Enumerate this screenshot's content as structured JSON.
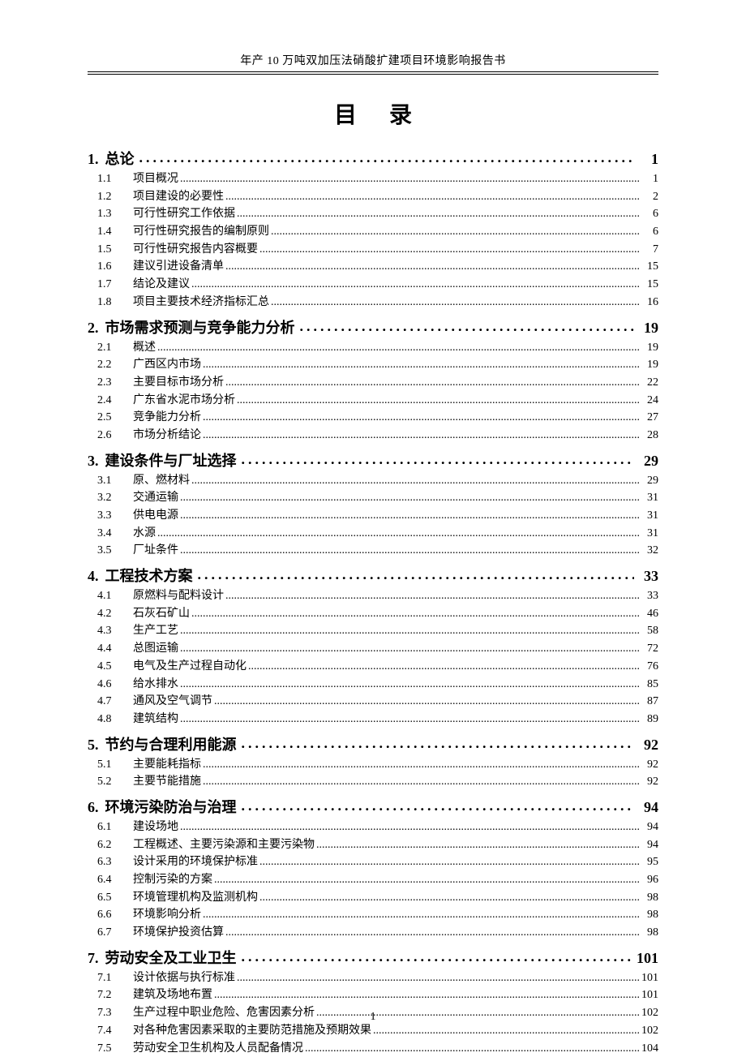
{
  "header": "年产 10 万吨双加压法硝酸扩建项目环境影响报告书",
  "title": "目录",
  "pageNumber": "1",
  "sections": [
    {
      "num": "1.",
      "label": "总论",
      "page": "1",
      "items": [
        {
          "num": "1.1",
          "label": "项目概况",
          "page": "1"
        },
        {
          "num": "1.2",
          "label": "项目建设的必要性",
          "page": "2"
        },
        {
          "num": "1.3",
          "label": "可行性研究工作依据",
          "page": "6"
        },
        {
          "num": "1.4",
          "label": "可行性研究报告的编制原则",
          "page": "6"
        },
        {
          "num": "1.5",
          "label": "可行性研究报告内容概要",
          "page": "7"
        },
        {
          "num": "1.6",
          "label": "建议引进设备清单",
          "page": "15"
        },
        {
          "num": "1.7",
          "label": "结论及建议",
          "page": "15"
        },
        {
          "num": "1.8",
          "label": "项目主要技术经济指标汇总",
          "page": "16"
        }
      ]
    },
    {
      "num": "2.",
      "label": "市场需求预测与竞争能力分析",
      "page": "19",
      "items": [
        {
          "num": "2.1",
          "label": "概述",
          "page": "19"
        },
        {
          "num": "2.2",
          "label": "广西区内市场",
          "page": "19"
        },
        {
          "num": "2.3",
          "label": "主要目标市场分析",
          "page": "22"
        },
        {
          "num": "2.4",
          "label": "广东省水泥市场分析",
          "page": "24"
        },
        {
          "num": "2.5",
          "label": "竞争能力分析",
          "page": "27"
        },
        {
          "num": "2.6",
          "label": "市场分析结论",
          "page": "28"
        }
      ]
    },
    {
      "num": "3.",
      "label": "建设条件与厂址选择",
      "page": "29",
      "items": [
        {
          "num": "3.1",
          "label": "原、燃材料",
          "page": "29"
        },
        {
          "num": "3.2",
          "label": "交通运输",
          "page": "31"
        },
        {
          "num": "3.3",
          "label": "供电电源",
          "page": "31"
        },
        {
          "num": "3.4",
          "label": "水源",
          "page": "31"
        },
        {
          "num": "3.5",
          "label": "厂址条件",
          "page": "32"
        }
      ]
    },
    {
      "num": "4.",
      "label": "工程技术方案",
      "page": "33",
      "items": [
        {
          "num": "4.1",
          "label": "原燃料与配料设计",
          "page": "33"
        },
        {
          "num": "4.2",
          "label": "石灰石矿山",
          "page": "46"
        },
        {
          "num": "4.3",
          "label": "生产工艺",
          "page": "58"
        },
        {
          "num": "4.4",
          "label": "总图运输",
          "page": "72"
        },
        {
          "num": "4.5",
          "label": "电气及生产过程自动化",
          "page": "76"
        },
        {
          "num": "4.6",
          "label": "给水排水",
          "page": "85"
        },
        {
          "num": "4.7",
          "label": "通风及空气调节",
          "page": "87"
        },
        {
          "num": "4.8",
          "label": "建筑结构",
          "page": "89"
        }
      ]
    },
    {
      "num": "5.",
      "label": "节约与合理利用能源",
      "page": "92",
      "items": [
        {
          "num": "5.1",
          "label": "主要能耗指标",
          "page": "92"
        },
        {
          "num": "5.2",
          "label": "主要节能措施",
          "page": "92"
        }
      ]
    },
    {
      "num": "6.",
      "label": "环境污染防治与治理",
      "page": "94",
      "items": [
        {
          "num": "6.1",
          "label": "建设场地",
          "page": "94"
        },
        {
          "num": "6.2",
          "label": "工程概述、主要污染源和主要污染物",
          "page": "94"
        },
        {
          "num": "6.3",
          "label": "设计采用的环境保护标准",
          "page": "95"
        },
        {
          "num": "6.4",
          "label": "控制污染的方案",
          "page": "96"
        },
        {
          "num": "6.5",
          "label": "环境管理机构及监测机构",
          "page": "98"
        },
        {
          "num": "6.6",
          "label": "环境影响分析",
          "page": "98"
        },
        {
          "num": "6.7",
          "label": "环境保护投资估算",
          "page": "98"
        }
      ]
    },
    {
      "num": "7.",
      "label": "劳动安全及工业卫生",
      "page": "101",
      "items": [
        {
          "num": "7.1",
          "label": "设计依据与执行标准",
          "page": "101"
        },
        {
          "num": "7.2",
          "label": "建筑及场地布置",
          "page": "101"
        },
        {
          "num": "7.3",
          "label": "生产过程中职业危险、危害因素分析",
          "page": "102"
        },
        {
          "num": "7.4",
          "label": "对各种危害因素采取的主要防范措施及预期效果",
          "page": "102"
        },
        {
          "num": "7.5",
          "label": "劳动安全卫生机构及人员配备情况",
          "page": "104"
        }
      ]
    }
  ]
}
